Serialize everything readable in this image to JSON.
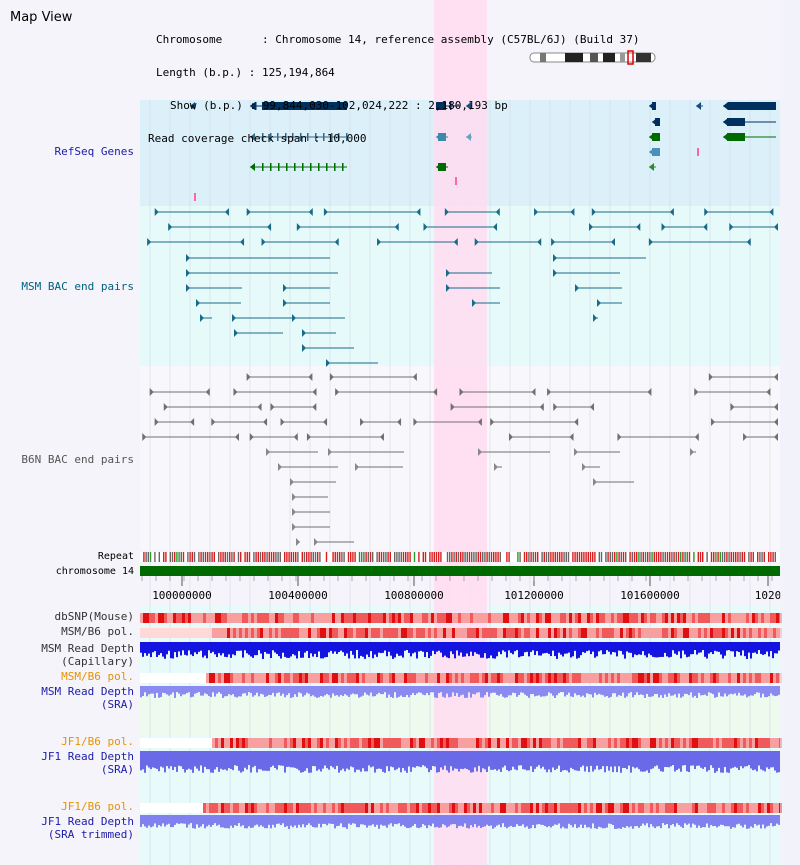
{
  "app_title": "Map View",
  "info": {
    "chromosome": "Chromosome      : Chromosome 14, reference assembly (C57BL/6J) (Build 37)",
    "length": "Length (b.p.) : 125,194,864",
    "show": "Show (b.p.) : 99,844,030-102,024,222 : 2,180,193 bp",
    "coverage": "Read coverage check span : 10,000"
  },
  "tracks": {
    "refseq": "RefSeq Genes",
    "msm_bac": "MSM BAC end pairs",
    "b6n_bac": "B6N BAC end pairs",
    "repeat": "Repeat",
    "chromosome": "chromosome 14",
    "dbsnp": "dbSNP(Mouse)",
    "msm_b6_pol_1": "MSM/B6 pol.",
    "msm_depth_cap_1": "MSM Read Depth",
    "msm_depth_cap_2": "(Capillary)",
    "msm_b6_pol_2": "MSM/B6 pol.",
    "msm_depth_sra_1": "MSM Read Depth",
    "msm_depth_sra_2": "(SRA)",
    "jf1_b6_pol_1": "JF1/B6 pol.",
    "jf1_depth_sra_1": "JF1 Read Depth",
    "jf1_depth_sra_2": "(SRA)",
    "jf1_b6_pol_2": "JF1/B6 pol.",
    "jf1_depth_trim_1": "JF1 Read Depth",
    "jf1_depth_trim_2": "(SRA trimmed)"
  },
  "axis": {
    "ticks": [
      "100000000",
      "100400000",
      "100800000",
      "101200000",
      "101600000",
      "1020"
    ]
  },
  "colors": {
    "refseq_bg": "#dcf0fa",
    "gene": "#00305e",
    "highlight": "#ffdcf0",
    "msm_bac": "#1a6a8a",
    "b6n_bac": "#707070",
    "chromosome_bar": "#006a00",
    "label_blue": "#1c1caa",
    "label_teal": "#006080",
    "label_gray": "#555555",
    "label_orange": "#e69200"
  }
}
